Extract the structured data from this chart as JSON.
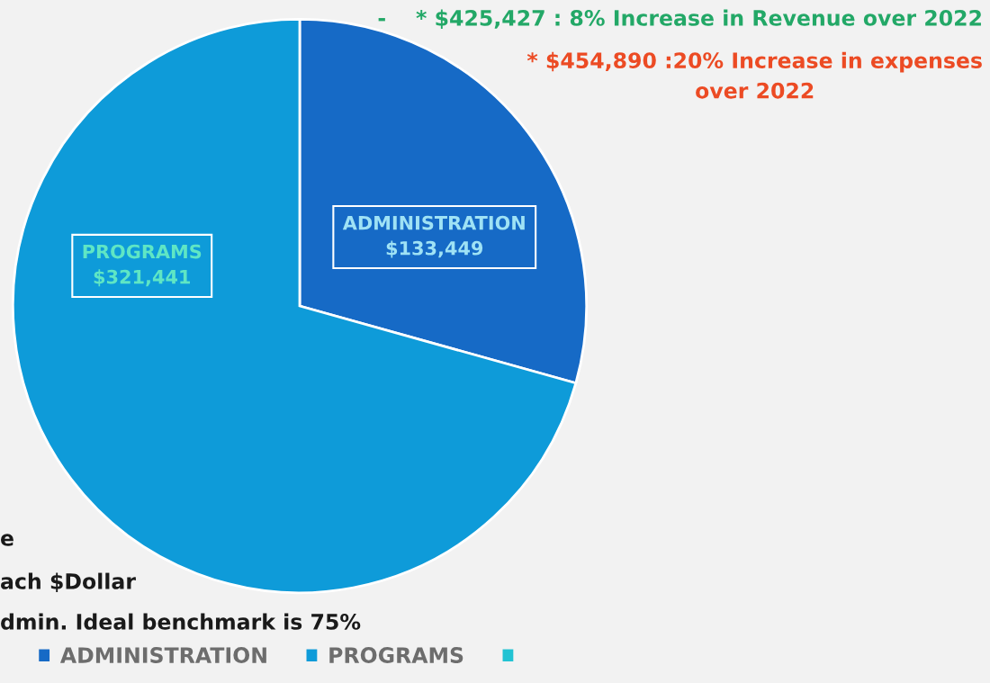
{
  "chart_data": {
    "type": "pie",
    "categories": [
      "ADMINISTRATION",
      "PROGRAMS",
      null
    ],
    "values": [
      133449,
      321441,
      0
    ],
    "colors": [
      "#166ac6",
      "#0e9bd9",
      "#22c3d3"
    ],
    "value_labels": [
      "$133,449",
      "$321,441",
      null
    ],
    "legend": "bottom",
    "annotations": [
      "-    * $425,427 : 8% Increase in Revenue over 2022",
      "* $454,890 :20% Increase in expenses\nover 2022",
      "e",
      "ach $Dollar",
      "dmin. Ideal benchmark is 75%"
    ]
  }
}
